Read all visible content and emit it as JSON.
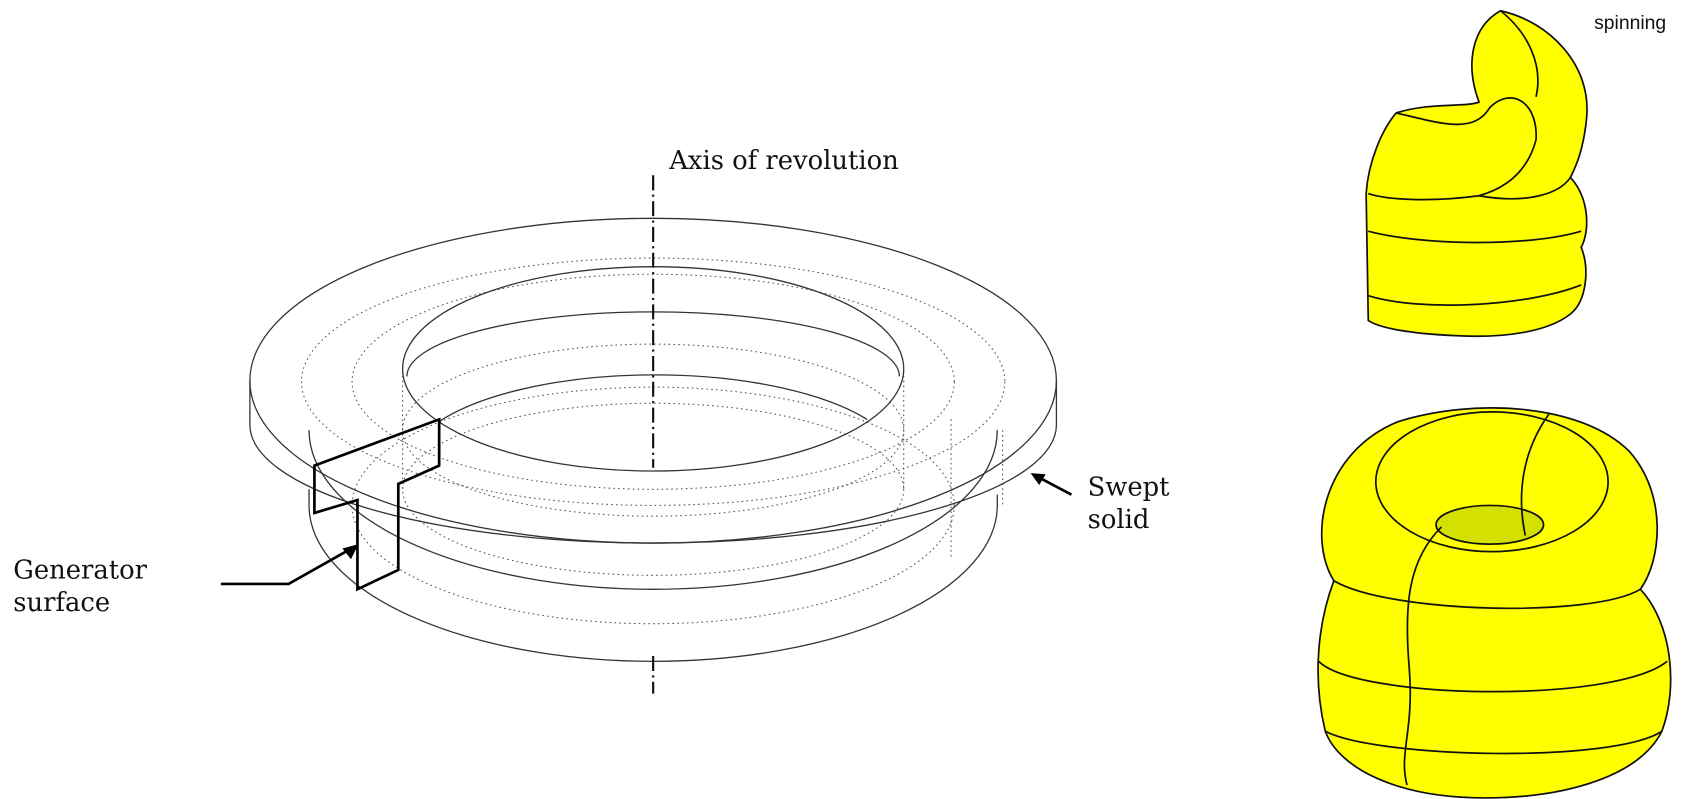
{
  "labels": {
    "axis": "Axis of revolution",
    "swept": [
      "Swept",
      "solid"
    ],
    "generator": [
      "Generator",
      "surface"
    ],
    "spinning": "spinning"
  }
}
